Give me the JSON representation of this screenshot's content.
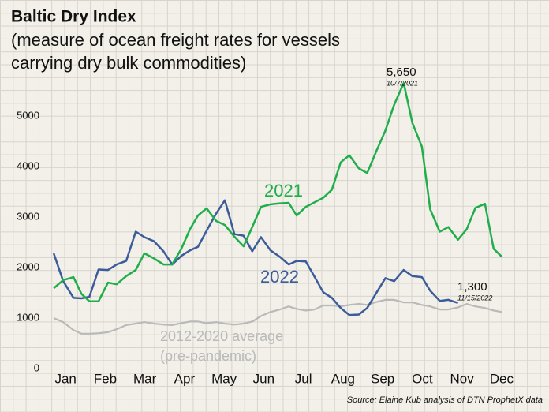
{
  "chart_data": {
    "type": "line",
    "title": "Baltic Dry Index",
    "subtitle": [
      "(measure of ocean freight rates for vessels",
      "carrying dry bulk commodities)"
    ],
    "x": [
      0.7,
      0.94,
      1.2,
      1.4,
      1.6,
      1.83,
      2.07,
      2.29,
      2.53,
      2.77,
      2.99,
      3.23,
      3.47,
      3.69,
      3.92,
      4.14,
      4.34,
      4.56,
      4.8,
      5.02,
      5.26,
      5.49,
      5.71,
      5.93,
      6.17,
      6.41,
      6.63,
      6.83,
      7.06,
      7.28,
      7.5,
      7.72,
      7.94,
      8.16,
      8.4,
      8.61,
      8.85,
      9.07,
      9.29,
      9.53,
      9.75,
      9.99,
      10.2,
      10.44,
      10.66,
      10.9,
      11.12,
      11.34,
      11.58,
      11.8,
      12.01
    ],
    "series": [
      {
        "name": "2021",
        "color": "#1fae4b",
        "values": [
          1590,
          1750,
          1810,
          1480,
          1330,
          1330,
          1700,
          1670,
          1830,
          1950,
          2280,
          2180,
          2060,
          2060,
          2370,
          2760,
          3030,
          3170,
          2920,
          2840,
          2610,
          2420,
          2800,
          3200,
          3250,
          3270,
          3280,
          3030,
          3200,
          3290,
          3380,
          3540,
          4080,
          4220,
          3960,
          3870,
          4320,
          4710,
          5220,
          5650,
          4860,
          4390,
          3150,
          2710,
          2800,
          2550,
          2760,
          3180,
          3260,
          2370,
          2210
        ]
      },
      {
        "name": "2022",
        "color": "#3b5b9a",
        "values": [
          2280,
          1730,
          1400,
          1390,
          1420,
          1960,
          1950,
          2060,
          2130,
          2710,
          2600,
          2520,
          2320,
          2060,
          2230,
          2340,
          2410,
          2730,
          3070,
          3330,
          2660,
          2630,
          2320,
          2600,
          2340,
          2210,
          2060,
          2130,
          2120,
          1820,
          1510,
          1400,
          1200,
          1060,
          1070,
          1200,
          1510,
          1790,
          1730,
          1950,
          1830,
          1810,
          1540,
          1340,
          1360,
          1300,
          null,
          null,
          null,
          null,
          null
        ]
      },
      {
        "name": "2012-2020 average",
        "color": "#b9b9b9",
        "values": [
          1000,
          920,
          760,
          690,
          690,
          700,
          720,
          780,
          860,
          890,
          920,
          890,
          870,
          860,
          900,
          930,
          930,
          900,
          920,
          890,
          870,
          890,
          930,
          1040,
          1120,
          1170,
          1230,
          1180,
          1150,
          1170,
          1250,
          1250,
          1230,
          1260,
          1280,
          1260,
          1320,
          1360,
          1360,
          1310,
          1310,
          1260,
          1230,
          1170,
          1170,
          1210,
          1280,
          1230,
          1200,
          1150,
          1120
        ]
      }
    ],
    "annotations": [
      "(pre-pandemic)",
      "5,650",
      "10/7/2021",
      "1,300",
      "11/15/2022"
    ],
    "source": "Source: Elaine Kub analysis of DTN ProphetX data",
    "xlim": [
      0.4,
      12.5
    ],
    "xticks": [
      {
        "value": 1,
        "label": "Jan"
      },
      {
        "value": 2,
        "label": "Feb"
      },
      {
        "value": 3,
        "label": "Mar"
      },
      {
        "value": 4,
        "label": "Apr"
      },
      {
        "value": 5,
        "label": "May"
      },
      {
        "value": 6,
        "label": "Jun"
      },
      {
        "value": 7,
        "label": "Jul"
      },
      {
        "value": 8,
        "label": "Aug"
      },
      {
        "value": 9,
        "label": "Sep"
      },
      {
        "value": 10,
        "label": "Oct"
      },
      {
        "value": 11,
        "label": "Nov"
      },
      {
        "value": 12,
        "label": "Dec"
      }
    ],
    "ylim": [
      0,
      5700
    ],
    "yticks": [
      0,
      1000,
      2000,
      3000,
      4000,
      5000
    ],
    "grid": false
  }
}
